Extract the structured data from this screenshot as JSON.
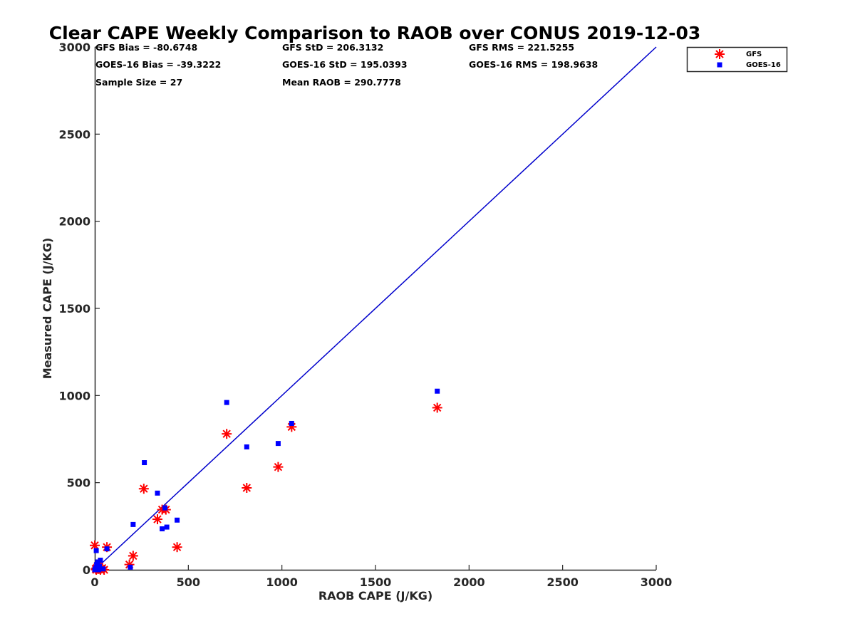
{
  "chart_data": {
    "type": "scatter",
    "title": "Clear CAPE Weekly Comparison to RAOB over CONUS 2019-12-03",
    "xlabel": "RAOB CAPE (J/KG)",
    "ylabel": "Measured CAPE (J/KG)",
    "xlim": [
      0,
      3000
    ],
    "ylim": [
      0,
      3000
    ],
    "xticks": [
      "0",
      "500",
      "1000",
      "1500",
      "2000",
      "2500",
      "3000"
    ],
    "yticks": [
      "0",
      "500",
      "1000",
      "1500",
      "2000",
      "2500",
      "3000"
    ],
    "grid": false,
    "legend_position": "top-right",
    "stats": [
      "GFS Bias = -80.6748",
      "GFS StD = 206.3132",
      "GFS RMS = 221.5255",
      "GOES-16 Bias = -39.3222",
      "GOES-16 StD = 195.0393",
      "GOES-16 RMS = 198.9638",
      "Sample Size = 27",
      "Mean RAOB = 290.7778"
    ],
    "reference_line": {
      "name": "1:1",
      "x": [
        0,
        3000
      ],
      "y": [
        0,
        3000
      ],
      "color": "#0000cc"
    },
    "series": [
      {
        "name": "GFS",
        "marker": "asterisk",
        "color": "#ff0000",
        "points": [
          [
            0,
            140
          ],
          [
            5,
            5
          ],
          [
            8,
            0
          ],
          [
            10,
            10
          ],
          [
            15,
            20
          ],
          [
            20,
            5
          ],
          [
            25,
            15
          ],
          [
            30,
            0
          ],
          [
            40,
            10
          ],
          [
            50,
            0
          ],
          [
            65,
            130
          ],
          [
            185,
            30
          ],
          [
            205,
            80
          ],
          [
            262,
            465
          ],
          [
            335,
            290
          ],
          [
            360,
            345
          ],
          [
            380,
            345
          ],
          [
            440,
            130
          ],
          [
            705,
            780
          ],
          [
            812,
            470
          ],
          [
            980,
            590
          ],
          [
            1052,
            820
          ],
          [
            1830,
            930
          ]
        ]
      },
      {
        "name": "GOES-16",
        "marker": "square",
        "color": "#0000ff",
        "points": [
          [
            0,
            0
          ],
          [
            5,
            10
          ],
          [
            8,
            110
          ],
          [
            10,
            30
          ],
          [
            15,
            45
          ],
          [
            20,
            0
          ],
          [
            25,
            20
          ],
          [
            30,
            55
          ],
          [
            45,
            5
          ],
          [
            65,
            120
          ],
          [
            190,
            15
          ],
          [
            205,
            260
          ],
          [
            265,
            615
          ],
          [
            335,
            440
          ],
          [
            360,
            235
          ],
          [
            375,
            355
          ],
          [
            385,
            245
          ],
          [
            440,
            285
          ],
          [
            705,
            960
          ],
          [
            812,
            705
          ],
          [
            980,
            725
          ],
          [
            1052,
            840
          ],
          [
            1830,
            1025
          ]
        ]
      }
    ]
  }
}
